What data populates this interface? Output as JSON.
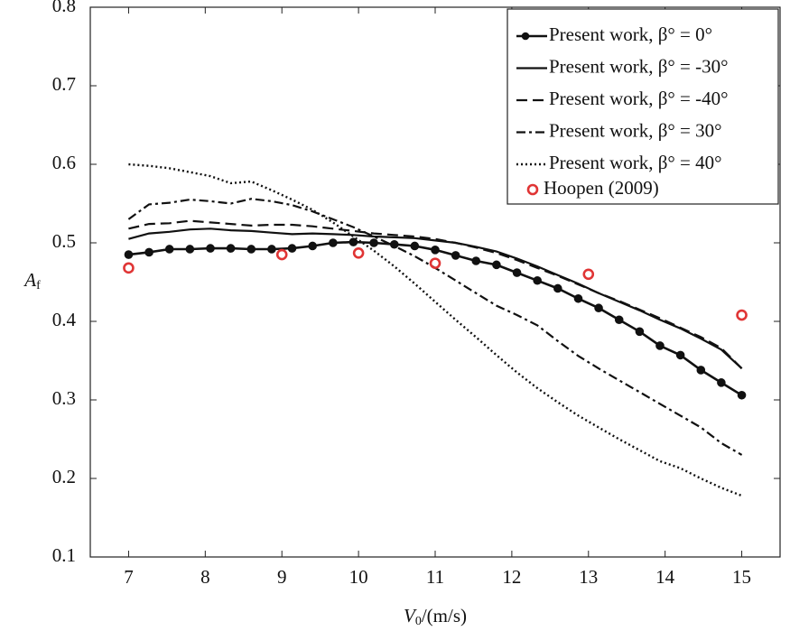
{
  "chart_data": {
    "type": "line",
    "xlabel": {
      "main": "V",
      "sub": "0",
      "rest": "/(m/s)"
    },
    "ylabel": {
      "main": "A",
      "sub": "f"
    },
    "xlim": [
      6.5,
      15.5
    ],
    "ylim": [
      0.1,
      0.8
    ],
    "xticks": [
      7,
      8,
      9,
      10,
      11,
      12,
      13,
      14,
      15
    ],
    "yticks": [
      0.1,
      0.2,
      0.3,
      0.4,
      0.5,
      0.6,
      0.7,
      0.8
    ],
    "grid": false,
    "legend": "upper right",
    "x": [
      7,
      7.267,
      7.533,
      7.8,
      8.067,
      8.333,
      8.6,
      8.867,
      9.133,
      9.4,
      9.667,
      9.933,
      10.2,
      10.467,
      10.733,
      11,
      11.267,
      11.533,
      11.8,
      12.067,
      12.333,
      12.6,
      12.867,
      13.133,
      13.4,
      13.667,
      13.933,
      14.2,
      14.467,
      14.733,
      15
    ],
    "series": [
      {
        "name": "Present work, β° = 0°",
        "color": "#111111",
        "style": "solid-dots",
        "values": [
          0.485,
          0.488,
          0.492,
          0.492,
          0.493,
          0.493,
          0.492,
          0.492,
          0.493,
          0.496,
          0.5,
          0.501,
          0.5,
          0.498,
          0.496,
          0.491,
          0.484,
          0.477,
          0.472,
          0.462,
          0.452,
          0.442,
          0.429,
          0.417,
          0.402,
          0.387,
          0.369,
          0.357,
          0.338,
          0.322,
          0.306
        ]
      },
      {
        "name": "Present work, β° = -30°",
        "color": "#111111",
        "style": "solid",
        "values": [
          0.505,
          0.512,
          0.514,
          0.517,
          0.518,
          0.516,
          0.515,
          0.513,
          0.511,
          0.512,
          0.511,
          0.51,
          0.508,
          0.507,
          0.506,
          0.503,
          0.5,
          0.495,
          0.489,
          0.48,
          0.47,
          0.459,
          0.448,
          0.436,
          0.425,
          0.414,
          0.402,
          0.391,
          0.378,
          0.364,
          0.34
        ]
      },
      {
        "name": "Present work, β° = -40°",
        "color": "#111111",
        "style": "dashed",
        "values": [
          0.518,
          0.524,
          0.525,
          0.528,
          0.526,
          0.524,
          0.522,
          0.523,
          0.523,
          0.521,
          0.518,
          0.515,
          0.512,
          0.51,
          0.508,
          0.505,
          0.5,
          0.494,
          0.487,
          0.478,
          0.468,
          0.458,
          0.447,
          0.436,
          0.426,
          0.415,
          0.404,
          0.392,
          0.38,
          0.366,
          0.34
        ]
      },
      {
        "name": "Present work, β° = 30°",
        "color": "#111111",
        "style": "dashdot",
        "values": [
          0.53,
          0.549,
          0.551,
          0.555,
          0.553,
          0.55,
          0.556,
          0.553,
          0.548,
          0.54,
          0.53,
          0.52,
          0.508,
          0.496,
          0.483,
          0.468,
          0.452,
          0.436,
          0.42,
          0.408,
          0.395,
          0.375,
          0.356,
          0.34,
          0.325,
          0.31,
          0.295,
          0.28,
          0.265,
          0.245,
          0.23
        ]
      },
      {
        "name": "Present work, β° = 40°",
        "color": "#111111",
        "style": "dotted",
        "values": [
          0.6,
          0.598,
          0.595,
          0.59,
          0.585,
          0.576,
          0.578,
          0.567,
          0.555,
          0.542,
          0.526,
          0.508,
          0.49,
          0.47,
          0.448,
          0.425,
          0.402,
          0.38,
          0.357,
          0.335,
          0.315,
          0.297,
          0.28,
          0.265,
          0.25,
          0.236,
          0.222,
          0.213,
          0.2,
          0.188,
          0.178
        ]
      },
      {
        "name": "Hoopen (2009)",
        "color": "#e03535",
        "style": "open-circles",
        "x": [
          7,
          9,
          10,
          11,
          13,
          15
        ],
        "values": [
          0.468,
          0.485,
          0.487,
          0.474,
          0.46,
          0.408
        ]
      }
    ]
  }
}
